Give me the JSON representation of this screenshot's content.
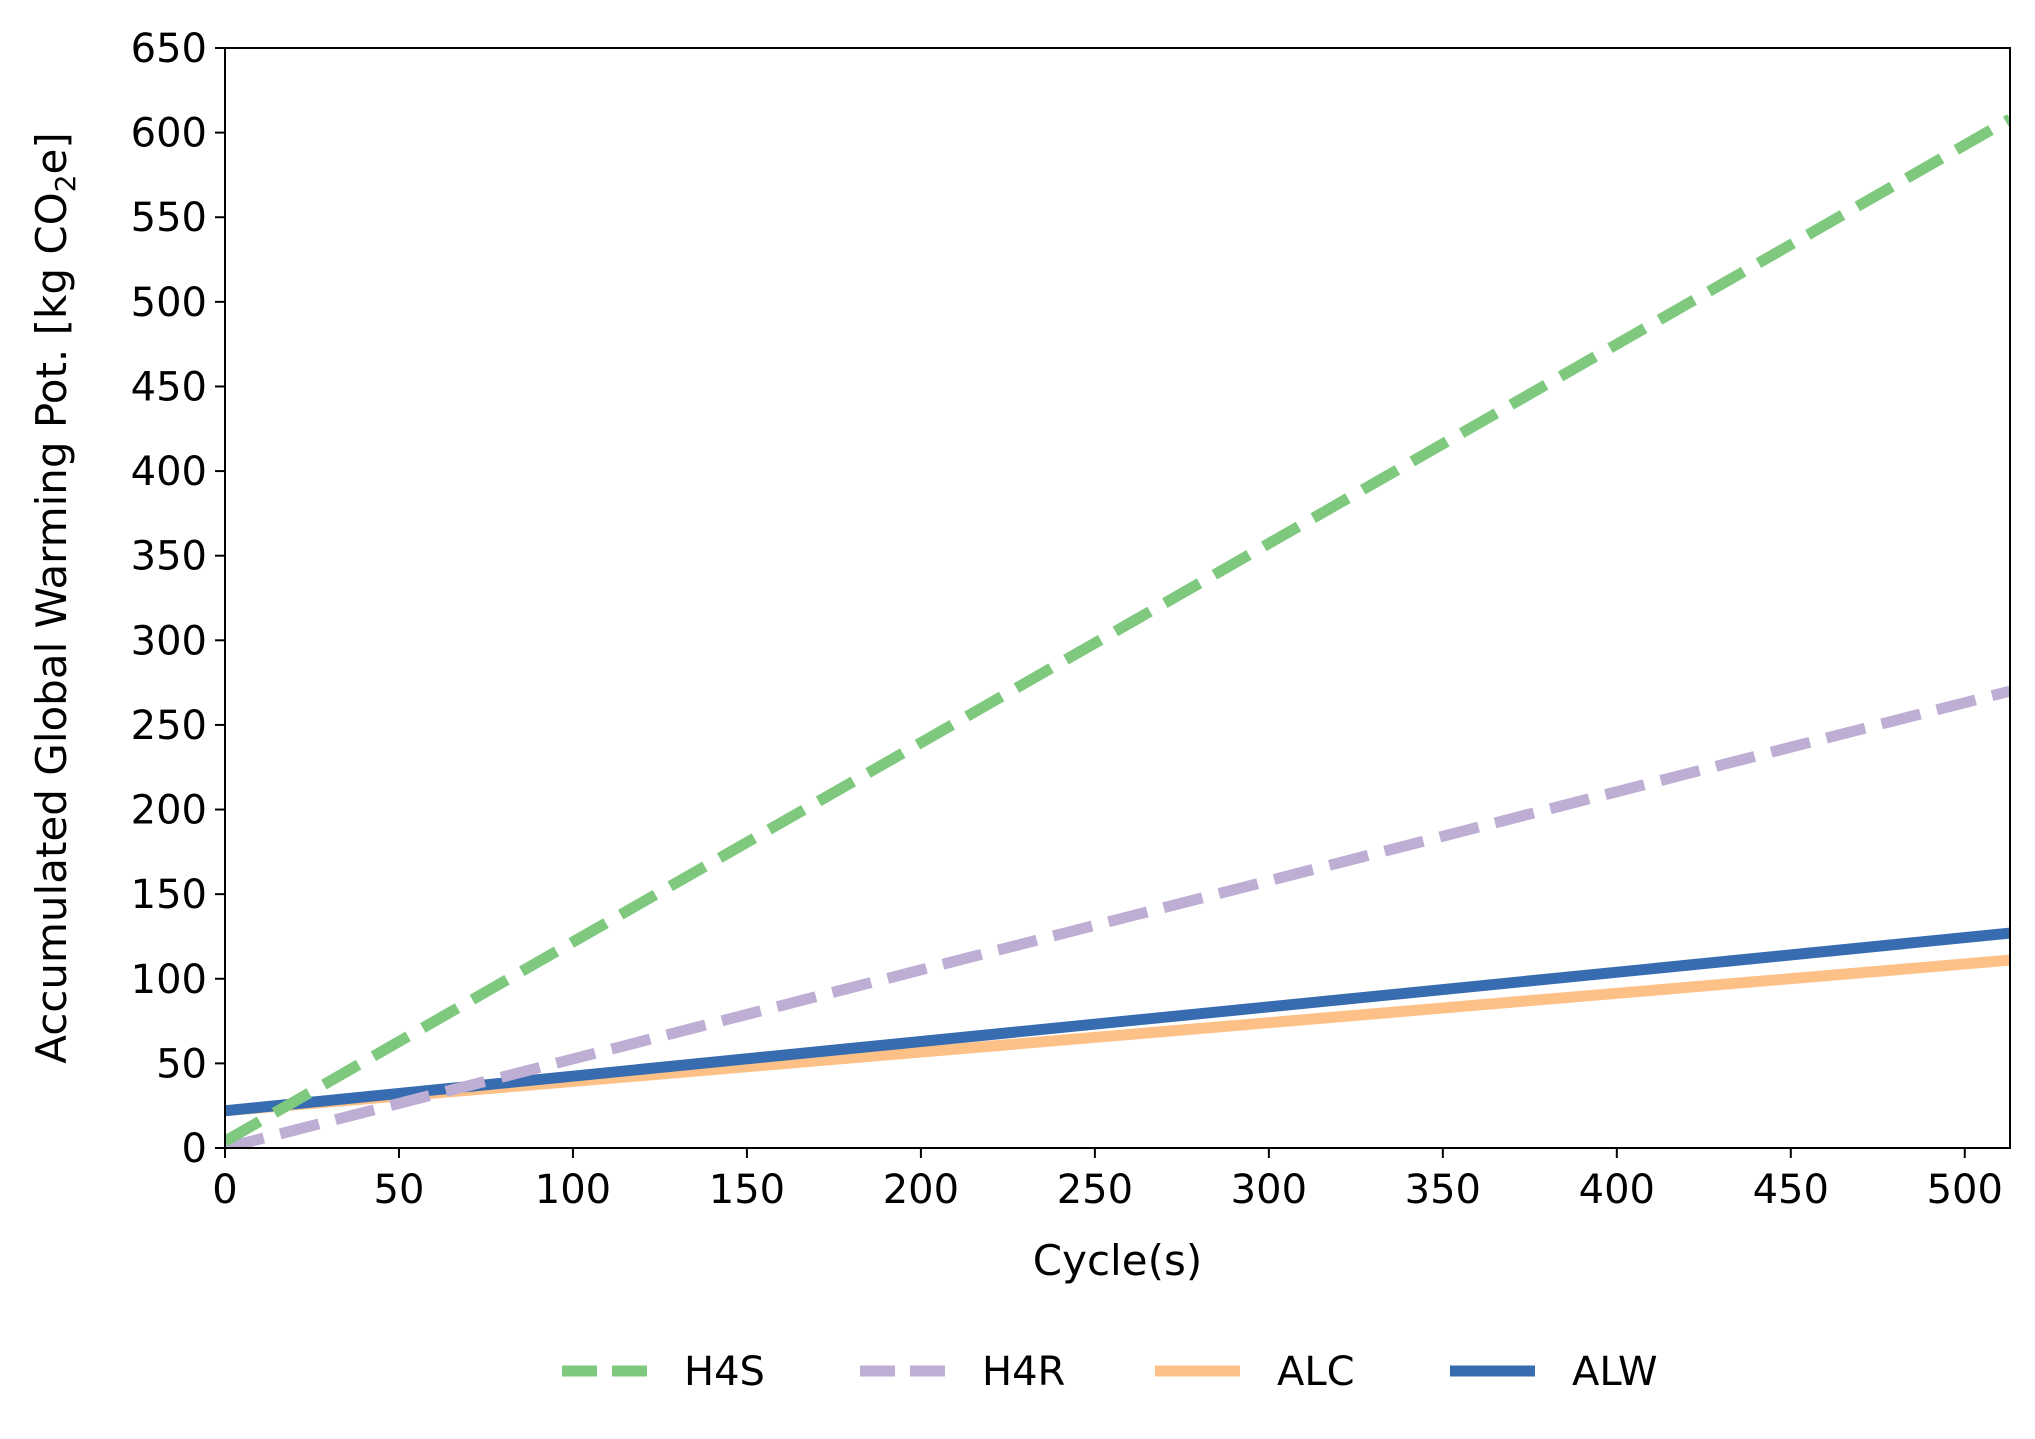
{
  "chart_data": {
    "type": "line",
    "xlabel": "Cycle(s)",
    "ylabel_main": "Accumulated Global Warming Pot. [kg CO",
    "ylabel_sub": "2",
    "ylabel_tail": "e]",
    "xlim": [
      0,
      513
    ],
    "ylim": [
      0,
      650
    ],
    "xticks": [
      0,
      50,
      100,
      150,
      200,
      250,
      300,
      350,
      400,
      450,
      500
    ],
    "yticks": [
      0,
      50,
      100,
      150,
      200,
      250,
      300,
      350,
      400,
      450,
      500,
      550,
      600,
      650
    ],
    "grid": false,
    "legend_position": "bottom-center",
    "series": [
      {
        "name": "H4S",
        "color": "#7fc97f",
        "style": "dashed",
        "x": [
          0,
          513
        ],
        "y": [
          4,
          608
        ]
      },
      {
        "name": "H4R",
        "color": "#beaed4",
        "style": "dashed",
        "x": [
          0,
          513
        ],
        "y": [
          0,
          270
        ]
      },
      {
        "name": "ALC",
        "color": "#fdc086",
        "style": "solid",
        "x": [
          0,
          513
        ],
        "y": [
          22,
          111
        ]
      },
      {
        "name": "ALW",
        "color": "#386cb0",
        "style": "solid",
        "x": [
          0,
          513
        ],
        "y": [
          22,
          127
        ]
      }
    ]
  }
}
